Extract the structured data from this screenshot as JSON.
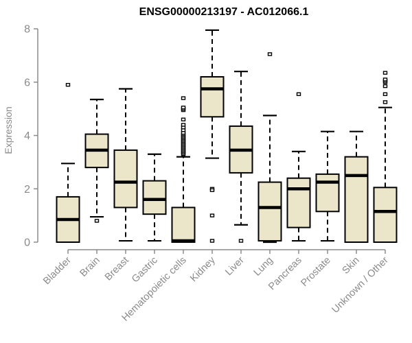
{
  "chart_data": {
    "type": "boxplot",
    "title": "ENSG00000213197 - AC012066.1",
    "ylabel": "Expression",
    "xlabel": "",
    "ylim": [
      0,
      8
    ],
    "yticks": [
      0,
      2,
      4,
      6,
      8
    ],
    "grid": false,
    "box_fill": "#EBE5C9",
    "box_stroke": "#000000",
    "axis_color": "#8a8a8a",
    "label_color": "#8a8a8a",
    "title_color": "#000000",
    "categories": [
      "Bladder",
      "Brain",
      "Breast",
      "Gastric",
      "Hematopoietic cells",
      "Kidney",
      "Liver",
      "Lung",
      "Pancreas",
      "Prostate",
      "Skin",
      "Unknown / Other"
    ],
    "series": [
      {
        "name": "Bladder",
        "whisker_low": 0,
        "q1": 0,
        "median": 0.85,
        "q3": 1.7,
        "whisker_high": 2.95,
        "outliers": [
          5.9
        ]
      },
      {
        "name": "Brain",
        "whisker_low": 0.95,
        "q1": 2.8,
        "median": 3.45,
        "q3": 4.05,
        "whisker_high": 5.35,
        "outliers": [
          0.8
        ]
      },
      {
        "name": "Breast",
        "whisker_low": 0.05,
        "q1": 1.3,
        "median": 2.25,
        "q3": 3.45,
        "whisker_high": 5.75,
        "outliers": []
      },
      {
        "name": "Gastric",
        "whisker_low": 0.05,
        "q1": 1.05,
        "median": 1.6,
        "q3": 2.3,
        "whisker_high": 3.3,
        "outliers": []
      },
      {
        "name": "Hematopoietic cells",
        "whisker_low": 0,
        "q1": 0,
        "median": 0.05,
        "q3": 1.3,
        "whisker_high": 3.2,
        "outliers": [
          3.3,
          3.35,
          3.4,
          3.45,
          3.5,
          3.55,
          3.6,
          3.65,
          3.7,
          3.75,
          3.8,
          3.85,
          3.9,
          3.95,
          4.0,
          4.05,
          4.1,
          4.2,
          4.3,
          4.4,
          4.6,
          4.95,
          5.0,
          5.05,
          5.4
        ]
      },
      {
        "name": "Kidney",
        "whisker_low": 3.15,
        "q1": 4.7,
        "median": 5.75,
        "q3": 6.2,
        "whisker_high": 7.95,
        "outliers": [
          2.0,
          1.95,
          1.0,
          0.05
        ]
      },
      {
        "name": "Liver",
        "whisker_low": 0.65,
        "q1": 2.6,
        "median": 3.45,
        "q3": 4.35,
        "whisker_high": 6.4,
        "outliers": [
          0.05
        ]
      },
      {
        "name": "Lung",
        "whisker_low": 0,
        "q1": 0.05,
        "median": 1.3,
        "q3": 2.25,
        "whisker_high": 4.75,
        "outliers": [
          7.05
        ]
      },
      {
        "name": "Pancreas",
        "whisker_low": 0.05,
        "q1": 0.55,
        "median": 2.0,
        "q3": 2.4,
        "whisker_high": 3.4,
        "outliers": [
          5.55
        ]
      },
      {
        "name": "Prostate",
        "whisker_low": 0.05,
        "q1": 1.15,
        "median": 2.25,
        "q3": 2.55,
        "whisker_high": 4.15,
        "outliers": []
      },
      {
        "name": "Skin",
        "whisker_low": 0,
        "q1": 0,
        "median": 2.5,
        "q3": 3.2,
        "whisker_high": 4.15,
        "outliers": []
      },
      {
        "name": "Unknown / Other",
        "whisker_low": 0,
        "q1": 0,
        "median": 1.15,
        "q3": 2.05,
        "whisker_high": 5.05,
        "outliers": [
          5.25,
          5.55,
          5.85,
          6.0,
          6.05,
          6.1,
          6.35
        ]
      }
    ]
  }
}
